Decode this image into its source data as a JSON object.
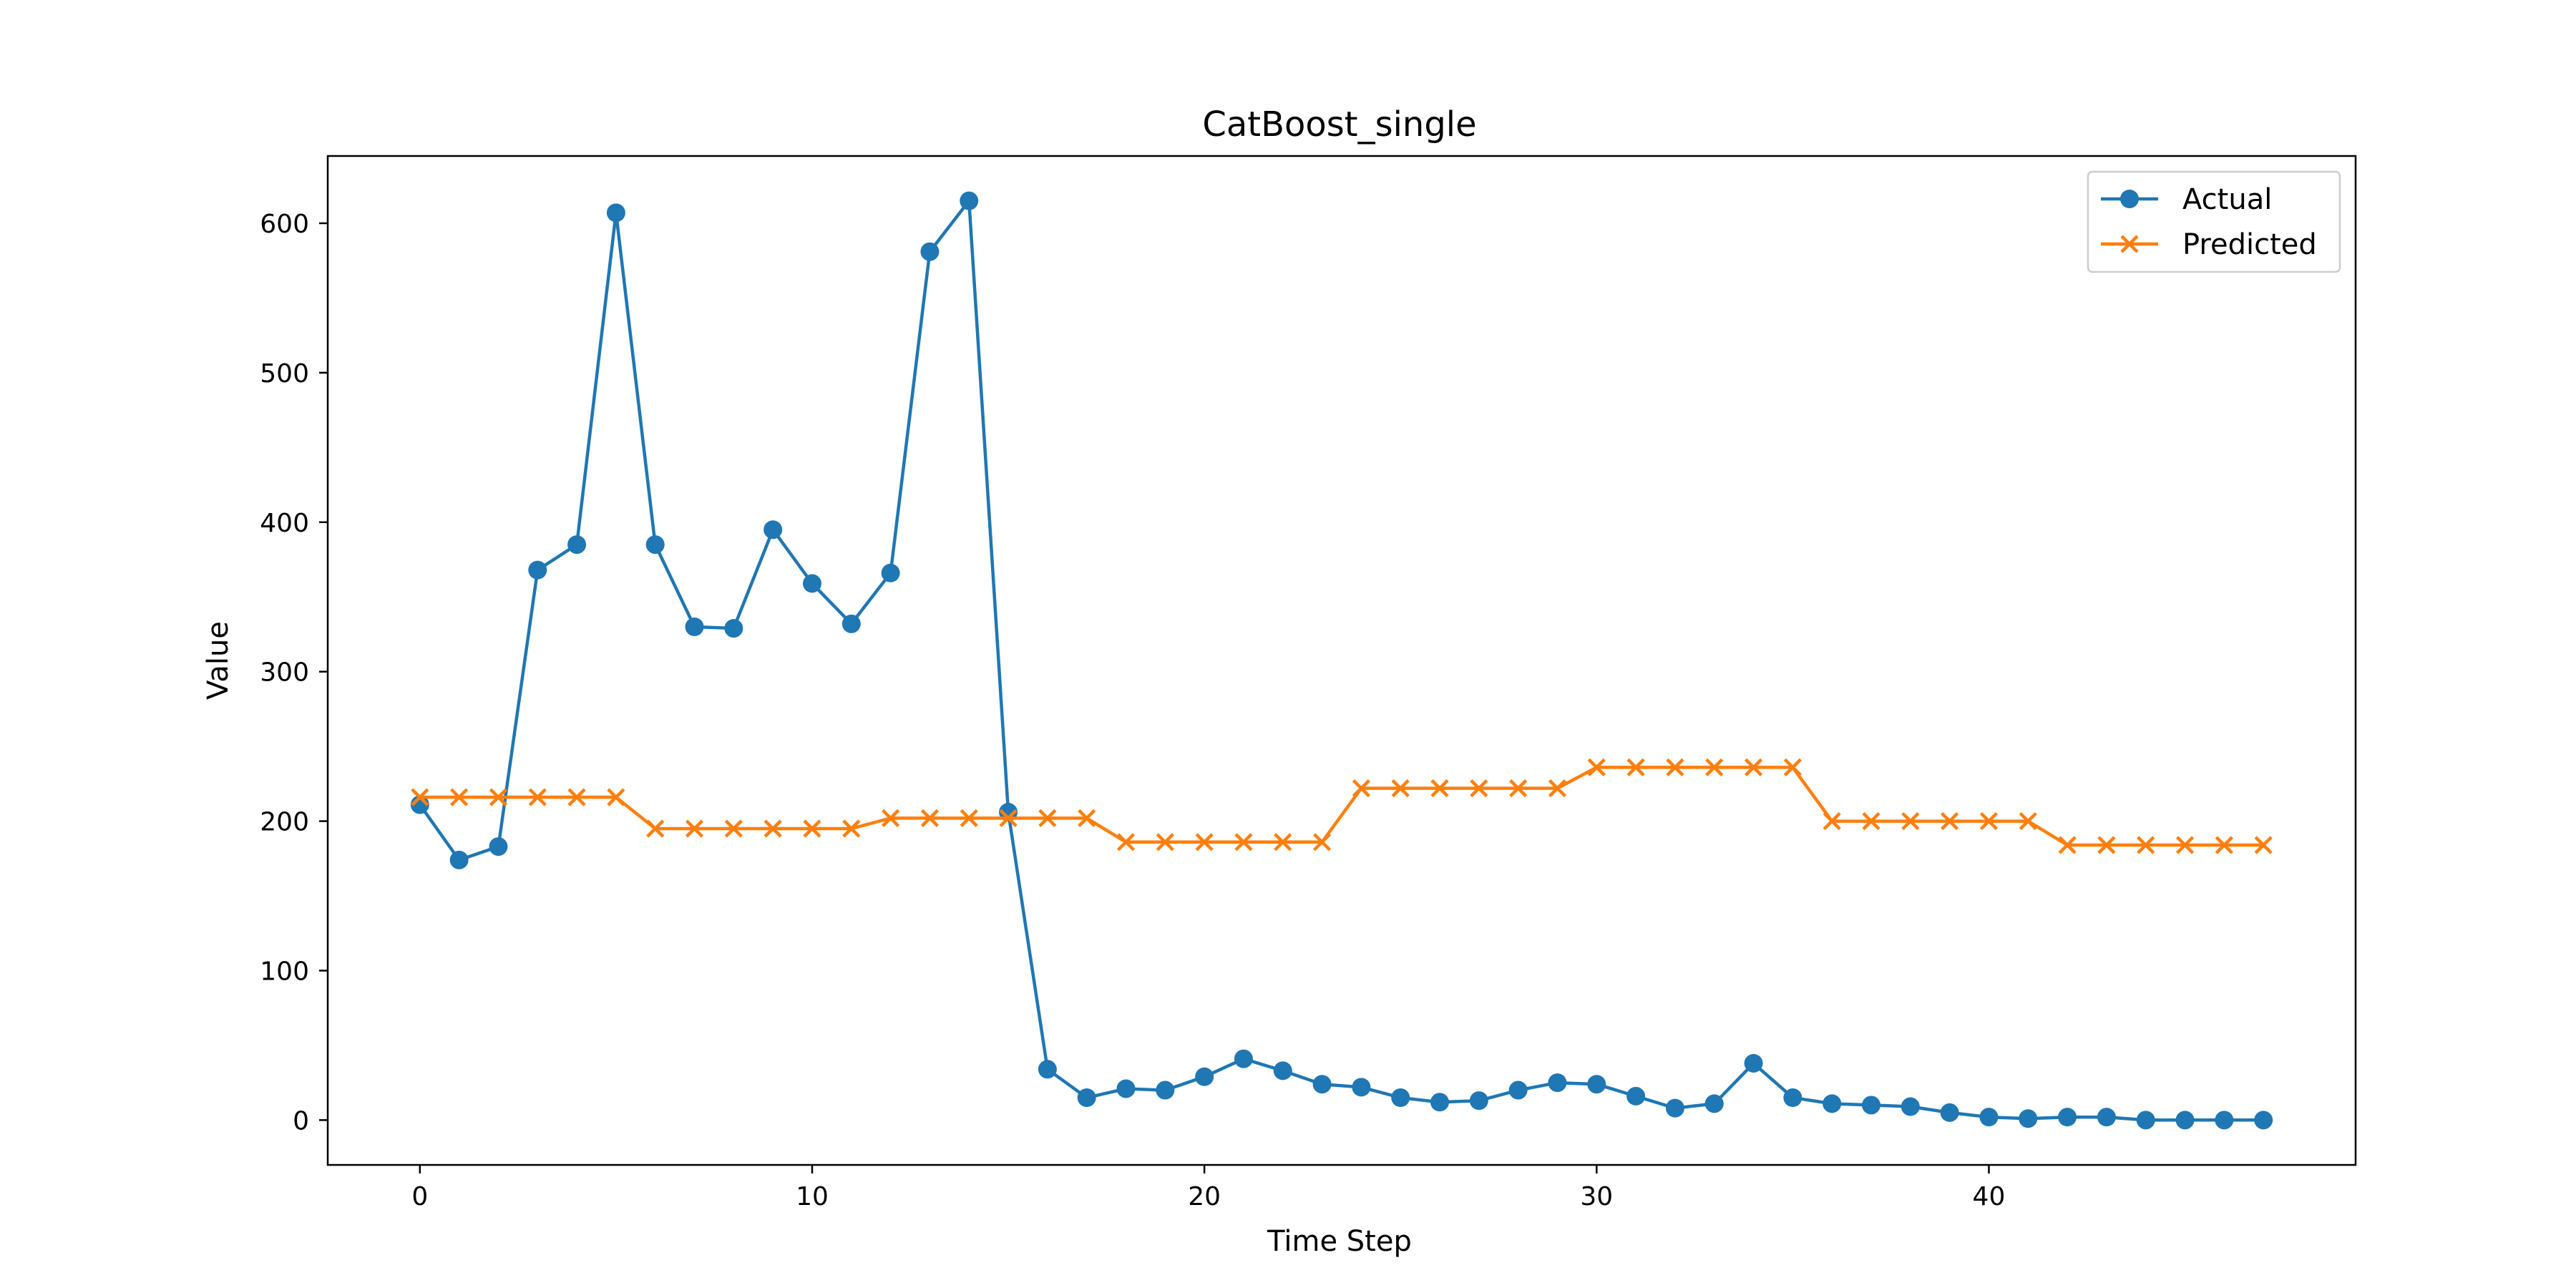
{
  "chart_data": {
    "type": "line",
    "title": "CatBoost_single",
    "xlabel": "Time Step",
    "ylabel": "Value",
    "xlim": [
      -2.35,
      49.35
    ],
    "ylim": [
      -30,
      645
    ],
    "xticks": [
      0,
      10,
      20,
      30,
      40
    ],
    "yticks": [
      0,
      100,
      200,
      300,
      400,
      500,
      600
    ],
    "grid": false,
    "legend_position": "top-right",
    "series": [
      {
        "name": "Actual",
        "color": "#1f77b4",
        "marker": "circle",
        "x": [
          0,
          1,
          2,
          3,
          4,
          5,
          6,
          7,
          8,
          9,
          10,
          11,
          12,
          13,
          14,
          15,
          16,
          17,
          18,
          19,
          20,
          21,
          22,
          23,
          24,
          25,
          26,
          27,
          28,
          29,
          30,
          31,
          32,
          33,
          34,
          35,
          36,
          37,
          38,
          39,
          40,
          41,
          42,
          43,
          44,
          45,
          46,
          47
        ],
        "values": [
          211,
          174,
          183,
          368,
          385,
          607,
          385,
          330,
          329,
          395,
          359,
          332,
          366,
          581,
          615,
          206,
          34,
          15,
          21,
          20,
          29,
          41,
          33,
          24,
          22,
          15,
          12,
          13,
          20,
          25,
          24,
          16,
          8,
          11,
          38,
          15,
          11,
          10,
          9,
          5,
          2,
          1,
          2,
          2,
          0,
          0,
          0,
          0
        ]
      },
      {
        "name": "Predicted",
        "color": "#ff7f0e",
        "marker": "x",
        "x": [
          0,
          1,
          2,
          3,
          4,
          5,
          6,
          7,
          8,
          9,
          10,
          11,
          12,
          13,
          14,
          15,
          16,
          17,
          18,
          19,
          20,
          21,
          22,
          23,
          24,
          25,
          26,
          27,
          28,
          29,
          30,
          31,
          32,
          33,
          34,
          35,
          36,
          37,
          38,
          39,
          40,
          41,
          42,
          43,
          44,
          45,
          46,
          47
        ],
        "values": [
          216,
          216,
          216,
          216,
          216,
          216,
          195,
          195,
          195,
          195,
          195,
          195,
          202,
          202,
          202,
          202,
          202,
          202,
          186,
          186,
          186,
          186,
          186,
          186,
          222,
          222,
          222,
          222,
          222,
          222,
          236,
          236,
          236,
          236,
          236,
          236,
          200,
          200,
          200,
          200,
          200,
          200,
          184,
          184,
          184,
          184,
          184,
          184
        ]
      }
    ]
  }
}
